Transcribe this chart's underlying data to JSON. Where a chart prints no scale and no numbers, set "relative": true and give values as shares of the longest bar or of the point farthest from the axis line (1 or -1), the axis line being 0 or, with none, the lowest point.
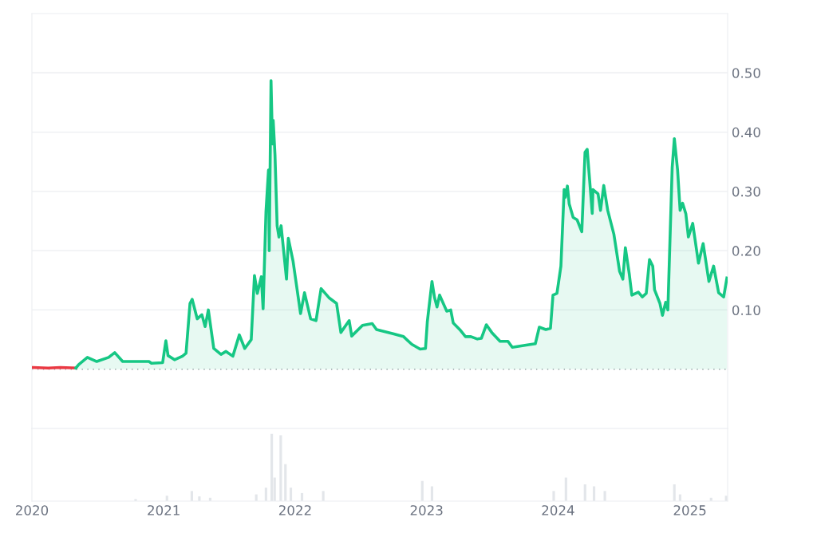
{
  "chart_data": [
    {
      "type": "line",
      "xlim": [
        "2020-01-01",
        "2025-04-16"
      ],
      "ylim": [
        -0.1,
        0.6
      ],
      "yticks": [
        {
          "value": 0.1,
          "label": "0.10"
        },
        {
          "value": 0.2,
          "label": "0.20"
        },
        {
          "value": 0.3,
          "label": "0.30"
        },
        {
          "value": 0.4,
          "label": "0.40"
        },
        {
          "value": 0.5,
          "label": "0.50"
        }
      ],
      "grid": "y",
      "tick_labels": "y",
      "ref_lines": [
        {
          "axis": "y",
          "value": 0,
          "label": null,
          "color": "#9aa0a6",
          "line_style": "dotted"
        }
      ],
      "series": [
        {
          "type": "line",
          "color": "#ea3943",
          "x": [
            "2020-01-04",
            "2020-02-15",
            "2020-03-20",
            "2020-05-02"
          ],
          "values": [
            0.003,
            0.002,
            0.003,
            0.002
          ]
        },
        {
          "type": "area",
          "color": "#16c784",
          "x": [
            "2020-05-02",
            "2020-05-10",
            "2020-06-03",
            "2020-06-29",
            "2020-08-01",
            "2020-08-18",
            "2020-09-09",
            "2020-11-21",
            "2020-11-28",
            "2020-12-29",
            "2021-01-07",
            "2021-01-13",
            "2021-01-31",
            "2021-02-22",
            "2021-03-04",
            "2021-03-15",
            "2021-03-21",
            "2021-04-04",
            "2021-04-17",
            "2021-04-26",
            "2021-05-05",
            "2021-05-20",
            "2021-06-09",
            "2021-06-23",
            "2021-07-12",
            "2021-07-30",
            "2021-08-14",
            "2021-09-01",
            "2021-09-10",
            "2021-09-18",
            "2021-09-29",
            "2021-10-04",
            "2021-10-12",
            "2021-10-19",
            "2021-10-21",
            "2021-10-26",
            "2021-10-30",
            "2021-11-01",
            "2021-11-06",
            "2021-11-12",
            "2021-11-17",
            "2021-11-23",
            "2021-12-08",
            "2021-12-13",
            "2021-12-26",
            "2022-01-16",
            "2022-01-27",
            "2022-02-13",
            "2022-02-28",
            "2022-03-14",
            "2022-04-06",
            "2022-04-26",
            "2022-05-08",
            "2022-05-31",
            "2022-06-07",
            "2022-07-07",
            "2022-08-03",
            "2022-08-15",
            "2022-09-30",
            "2022-10-29",
            "2022-11-21",
            "2022-12-14",
            "2022-12-29",
            "2023-01-03",
            "2023-01-16",
            "2023-01-23",
            "2023-01-30",
            "2023-02-06",
            "2023-02-26",
            "2023-03-09",
            "2023-03-16",
            "2023-04-03",
            "2023-04-19",
            "2023-05-04",
            "2023-05-22",
            "2023-06-02",
            "2023-06-16",
            "2023-07-01",
            "2023-07-24",
            "2023-08-15",
            "2023-08-27",
            "2023-10-08",
            "2023-10-30",
            "2023-11-10",
            "2023-11-28",
            "2023-12-11",
            "2023-12-18",
            "2023-12-29",
            "2024-01-09",
            "2024-01-18",
            "2024-01-21",
            "2024-01-27",
            "2024-02-01",
            "2024-02-12",
            "2024-02-23",
            "2024-03-07",
            "2024-03-16",
            "2024-03-22",
            "2024-03-29",
            "2024-04-05",
            "2024-04-07",
            "2024-04-21",
            "2024-04-28",
            "2024-05-07",
            "2024-05-18",
            "2024-06-04",
            "2024-06-20",
            "2024-06-29",
            "2024-07-06",
            "2024-07-17",
            "2024-07-24",
            "2024-08-11",
            "2024-08-22",
            "2024-09-02",
            "2024-09-11",
            "2024-09-20",
            "2024-09-25",
            "2024-10-10",
            "2024-10-17",
            "2024-10-26",
            "2024-11-01",
            "2024-11-13",
            "2024-11-19",
            "2024-11-28",
            "2024-12-05",
            "2024-12-12",
            "2024-12-21",
            "2024-12-28",
            "2025-01-09",
            "2025-01-25",
            "2025-02-07",
            "2025-02-23",
            "2025-03-08",
            "2025-03-22",
            "2025-04-05",
            "2025-04-14"
          ],
          "values": [
            0.002,
            0.008,
            0.02,
            0.013,
            0.02,
            0.028,
            0.013,
            0.013,
            0.01,
            0.011,
            0.048,
            0.023,
            0.016,
            0.022,
            0.027,
            0.111,
            0.118,
            0.085,
            0.092,
            0.072,
            0.1,
            0.035,
            0.025,
            0.03,
            0.022,
            0.058,
            0.035,
            0.05,
            0.158,
            0.128,
            0.156,
            0.102,
            0.266,
            0.336,
            0.2,
            0.487,
            0.38,
            0.42,
            0.362,
            0.242,
            0.223,
            0.242,
            0.152,
            0.221,
            0.183,
            0.094,
            0.129,
            0.085,
            0.082,
            0.136,
            0.12,
            0.111,
            0.062,
            0.082,
            0.056,
            0.074,
            0.077,
            0.067,
            0.06,
            0.055,
            0.042,
            0.034,
            0.035,
            0.08,
            0.148,
            0.121,
            0.105,
            0.125,
            0.098,
            0.1,
            0.078,
            0.067,
            0.055,
            0.055,
            0.051,
            0.052,
            0.075,
            0.062,
            0.047,
            0.047,
            0.037,
            0.041,
            0.043,
            0.071,
            0.067,
            0.069,
            0.125,
            0.128,
            0.174,
            0.303,
            0.29,
            0.309,
            0.279,
            0.256,
            0.252,
            0.232,
            0.366,
            0.371,
            0.317,
            0.263,
            0.303,
            0.296,
            0.268,
            0.31,
            0.268,
            0.228,
            0.165,
            0.152,
            0.205,
            0.16,
            0.125,
            0.13,
            0.122,
            0.128,
            0.185,
            0.174,
            0.134,
            0.111,
            0.091,
            0.113,
            0.1,
            0.34,
            0.389,
            0.336,
            0.268,
            0.28,
            0.262,
            0.223,
            0.246,
            0.179,
            0.212,
            0.148,
            0.174,
            0.129,
            0.122,
            0.154
          ]
        }
      ]
    },
    {
      "type": "bar",
      "relative": true,
      "tick_labels": "x",
      "xlim": [
        "2020-01-01",
        "2025-04-16"
      ],
      "xticks": [
        {
          "value": "2020-01-01",
          "label": "2020"
        },
        {
          "value": "2021-01-01",
          "label": "2021"
        },
        {
          "value": "2022-01-01",
          "label": "2022"
        },
        {
          "value": "2023-01-01",
          "label": "2023"
        },
        {
          "value": "2024-01-01",
          "label": "2024"
        },
        {
          "value": "2025-01-01",
          "label": "2025"
        }
      ],
      "color": "#e3e6ea",
      "x": [
        "2020-10-15",
        "2021-01-10",
        "2021-03-20",
        "2021-04-10",
        "2021-05-10",
        "2021-09-15",
        "2021-10-12",
        "2021-10-28",
        "2021-11-05",
        "2021-11-22",
        "2021-12-05",
        "2021-12-20",
        "2022-01-20",
        "2022-03-20",
        "2022-12-20",
        "2023-01-16",
        "2023-12-20",
        "2024-01-23",
        "2024-03-16",
        "2024-04-10",
        "2024-05-10",
        "2024-11-19",
        "2024-12-05",
        "2025-03-01",
        "2025-04-12"
      ],
      "values": [
        0.03,
        0.08,
        0.15,
        0.07,
        0.05,
        0.1,
        0.2,
        1.0,
        0.35,
        0.98,
        0.55,
        0.2,
        0.12,
        0.15,
        0.3,
        0.22,
        0.15,
        0.35,
        0.25,
        0.22,
        0.15,
        0.25,
        0.1,
        0.05,
        0.08
      ]
    }
  ]
}
